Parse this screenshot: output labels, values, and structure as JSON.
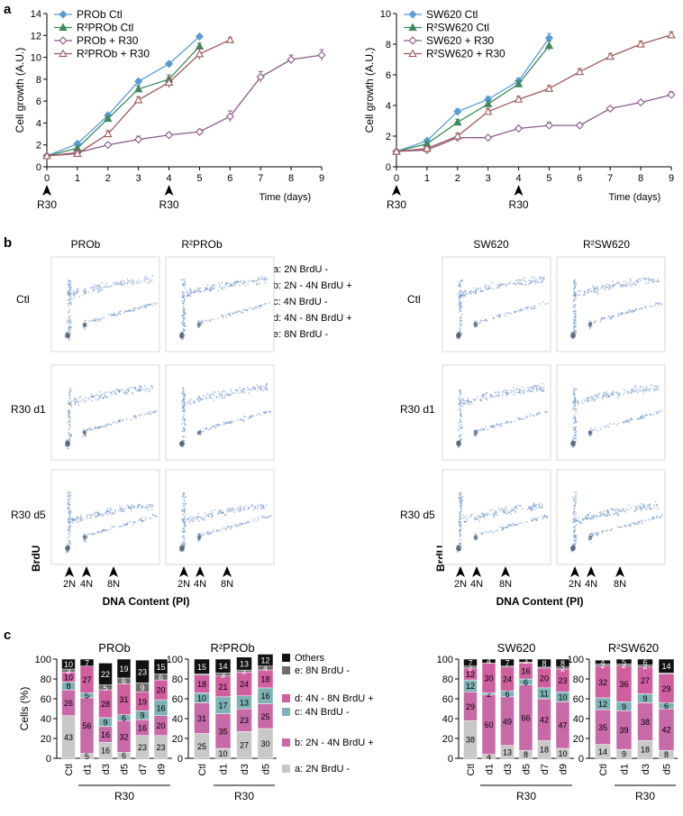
{
  "panel_labels": {
    "a": "a",
    "b": "b",
    "c": "c"
  },
  "colors": {
    "ctl": "#5b9bd5",
    "r2ctl": "#3e8a5e",
    "r30": "#8b5a8b",
    "r2r30": "#a05a5a",
    "a_seg": "#c8c8c8",
    "b_seg": "#c86aa8",
    "c_seg": "#7fb3b3",
    "d_seg": "#d05f9f",
    "e_seg": "#6e6e6e",
    "others": "#111111",
    "scatter": "#6a8fc8"
  },
  "chart_data": [
    {
      "id": "growth_prob",
      "type": "line",
      "xlabel": "Time (days)",
      "ylabel": "Cell growth (A.U.)",
      "xlim": [
        0,
        9
      ],
      "ylim": [
        0,
        14
      ],
      "xticks": [
        "0",
        "1",
        "2",
        "3",
        "4",
        "5",
        "6",
        "7",
        "8",
        "9"
      ],
      "yticks": [
        "0",
        "2",
        "4",
        "6",
        "8",
        "10",
        "12",
        "14"
      ],
      "arrow_labels": [
        "R30",
        "R30"
      ],
      "arrow_days": [
        0,
        4
      ],
      "series": [
        {
          "name": "PROb Ctl",
          "color": "ctl",
          "marker": "diamond",
          "x": [
            0,
            1,
            2,
            3,
            4,
            5
          ],
          "y": [
            1,
            2.1,
            4.7,
            7.8,
            9.4,
            11.9
          ],
          "err": [
            0.1,
            0.15,
            0.2,
            0.2,
            0.2,
            0.1
          ]
        },
        {
          "name": "R²PROb Ctl",
          "color": "r2ctl",
          "marker": "triangle",
          "x": [
            0,
            1,
            2,
            3,
            4,
            5
          ],
          "y": [
            1,
            1.7,
            4.4,
            7.1,
            8.0,
            11.0
          ],
          "err": [
            0.1,
            0.15,
            0.2,
            0.3,
            0.4,
            0.3
          ]
        },
        {
          "name": "PROb + R30",
          "color": "r30",
          "marker": "diamond-open",
          "x": [
            0,
            1,
            2,
            3,
            4,
            5,
            6,
            7,
            8,
            9
          ],
          "y": [
            1,
            1.3,
            2.0,
            2.5,
            2.9,
            3.2,
            4.6,
            8.2,
            9.8,
            10.2
          ],
          "err": [
            0.1,
            0.1,
            0.2,
            0.3,
            0.2,
            0.2,
            0.5,
            0.5,
            0.4,
            0.5
          ]
        },
        {
          "name": "R²PROb + R30",
          "color": "r2r30",
          "marker": "triangle-open",
          "x": [
            0,
            1,
            2,
            3,
            4,
            5,
            6
          ],
          "y": [
            1,
            1.2,
            3.0,
            6.1,
            7.7,
            10.3,
            11.6
          ],
          "err": [
            0.1,
            0.1,
            0.3,
            0.3,
            0.5,
            0.5,
            0.2
          ]
        }
      ]
    },
    {
      "id": "growth_sw620",
      "type": "line",
      "xlabel": "Time (days)",
      "ylabel": "Cell growth (A.U.)",
      "xlim": [
        0,
        9
      ],
      "ylim": [
        0,
        10
      ],
      "xticks": [
        "0",
        "1",
        "2",
        "3",
        "4",
        "5",
        "6",
        "7",
        "8",
        "9"
      ],
      "yticks": [
        "0",
        "2",
        "4",
        "6",
        "8",
        "10"
      ],
      "arrow_labels": [
        "R30",
        "R30"
      ],
      "arrow_days": [
        0,
        4
      ],
      "series": [
        {
          "name": "SW620 Ctl",
          "color": "ctl",
          "marker": "diamond",
          "x": [
            0,
            1,
            2,
            3,
            4,
            5
          ],
          "y": [
            1,
            1.7,
            3.6,
            4.4,
            5.6,
            8.4
          ],
          "err": [
            0.1,
            0.1,
            0.2,
            0.2,
            0.2,
            0.3
          ]
        },
        {
          "name": "R²SW620 Ctl",
          "color": "r2ctl",
          "marker": "triangle",
          "x": [
            0,
            1,
            2,
            3,
            4,
            5
          ],
          "y": [
            1,
            1.5,
            2.9,
            4.1,
            5.4,
            7.9
          ],
          "err": [
            0.1,
            0.1,
            0.2,
            0.2,
            0.2,
            0.3
          ]
        },
        {
          "name": "SW620 + R30",
          "color": "r30",
          "marker": "diamond-open",
          "x": [
            0,
            1,
            2,
            3,
            4,
            5,
            6,
            7,
            8,
            9
          ],
          "y": [
            1,
            1.1,
            1.9,
            1.9,
            2.5,
            2.7,
            2.7,
            3.8,
            4.2,
            4.7
          ],
          "err": [
            0.1,
            0.1,
            0.1,
            0.1,
            0.1,
            0.2,
            0.1,
            0.1,
            0.1,
            0.2
          ]
        },
        {
          "name": "R²SW620 + R30",
          "color": "r2r30",
          "marker": "triangle-open",
          "x": [
            0,
            1,
            2,
            3,
            4,
            5,
            6,
            7,
            8,
            9
          ],
          "y": [
            1,
            1.2,
            2.0,
            3.6,
            4.4,
            5.1,
            6.2,
            7.2,
            8.0,
            8.6
          ],
          "err": [
            0.1,
            0.1,
            0.2,
            0.2,
            0.2,
            0.2,
            0.2,
            0.2,
            0.2,
            0.2
          ]
        }
      ]
    },
    {
      "id": "stack_prob",
      "type": "bar",
      "title": "PROb",
      "ylabel": "Cells (%)",
      "ylim": [
        0,
        100
      ],
      "yticks": [
        "0",
        "20",
        "40",
        "60",
        "80",
        "100"
      ],
      "categories": [
        "Ctl",
        "d1",
        "d3",
        "d5",
        "d7",
        "d9"
      ],
      "group_label": "R30",
      "group_from": 1,
      "series": [
        {
          "name": "a: 2N BrdU -",
          "color": "a_seg",
          "values": [
            43,
            5,
            16,
            6,
            23,
            23
          ]
        },
        {
          "name": "b: 2N - 4N BrdU +",
          "color": "b_seg",
          "values": [
            26,
            56,
            16,
            32,
            16,
            20
          ]
        },
        {
          "name": "c: 4N BrdU -",
          "color": "c_seg",
          "values": [
            8,
            5,
            9,
            6,
            9,
            16
          ]
        },
        {
          "name": "d: 4N - 8N BrdU +",
          "color": "d_seg",
          "values": [
            10,
            27,
            28,
            31,
            19,
            20
          ]
        },
        {
          "name": "e: 8N BrdU -",
          "color": "e_seg",
          "values": [
            3,
            0,
            5,
            6,
            9,
            6
          ]
        },
        {
          "name": "Others",
          "color": "others",
          "values": [
            10,
            7,
            22,
            19,
            23,
            15
          ]
        }
      ]
    },
    {
      "id": "stack_r2prob",
      "type": "bar",
      "title": "R²PROb",
      "ylabel": "",
      "ylim": [
        0,
        100
      ],
      "yticks": [
        "0",
        "20",
        "40",
        "60",
        "80",
        "100"
      ],
      "categories": [
        "Ctl",
        "d1",
        "d3",
        "d5"
      ],
      "group_label": "R30",
      "group_from": 1,
      "series": [
        {
          "name": "a: 2N BrdU -",
          "color": "a_seg",
          "values": [
            25,
            10,
            27,
            30
          ]
        },
        {
          "name": "b: 2N - 4N BrdU +",
          "color": "b_seg",
          "values": [
            31,
            35,
            23,
            25
          ]
        },
        {
          "name": "c: 4N BrdU -",
          "color": "c_seg",
          "values": [
            10,
            17,
            13,
            16
          ]
        },
        {
          "name": "d: 4N - 8N BrdU +",
          "color": "d_seg",
          "values": [
            18,
            21,
            24,
            18
          ]
        },
        {
          "name": "e: 8N BrdU -",
          "color": "e_seg",
          "values": [
            1,
            3,
            2,
            4
          ]
        },
        {
          "name": "Others",
          "color": "others",
          "values": [
            15,
            14,
            13,
            12
          ]
        }
      ]
    },
    {
      "id": "stack_sw620",
      "type": "bar",
      "title": "SW620",
      "ylabel": "",
      "ylim": [
        0,
        100
      ],
      "yticks": [
        "0",
        "20",
        "40",
        "60",
        "80",
        "100"
      ],
      "categories": [
        "Ctl",
        "d1",
        "d3",
        "d5",
        "d7",
        "d9"
      ],
      "group_label": "R30",
      "group_from": 1,
      "series": [
        {
          "name": "a: 2N BrdU -",
          "color": "a_seg",
          "values": [
            38,
            4,
            13,
            8,
            18,
            10
          ]
        },
        {
          "name": "b: 2N - 4N BrdU +",
          "color": "b_seg",
          "values": [
            29,
            60,
            49,
            66,
            42,
            47
          ]
        },
        {
          "name": "c: 4N BrdU -",
          "color": "c_seg",
          "values": [
            12,
            2,
            6,
            6,
            11,
            10
          ]
        },
        {
          "name": "d: 4N - 8N BrdU +",
          "color": "d_seg",
          "values": [
            12,
            30,
            24,
            16,
            20,
            23
          ]
        },
        {
          "name": "e: 8N BrdU -",
          "color": "e_seg",
          "values": [
            2,
            0,
            1,
            1,
            1,
            2
          ]
        },
        {
          "name": "Others",
          "color": "others",
          "values": [
            7,
            4,
            7,
            3,
            8,
            8
          ]
        }
      ]
    },
    {
      "id": "stack_r2sw620",
      "type": "bar",
      "title": "R²SW620",
      "ylabel": "",
      "ylim": [
        0,
        100
      ],
      "yticks": [
        "0",
        "20",
        "40",
        "60",
        "80",
        "100"
      ],
      "categories": [
        "Ctl",
        "d1",
        "d3",
        "d5"
      ],
      "group_label": "R30",
      "group_from": 1,
      "series": [
        {
          "name": "a: 2N BrdU -",
          "color": "a_seg",
          "values": [
            14,
            9,
            18,
            8
          ]
        },
        {
          "name": "b: 2N - 4N BrdU +",
          "color": "b_seg",
          "values": [
            35,
            39,
            38,
            42
          ]
        },
        {
          "name": "c: 4N BrdU -",
          "color": "c_seg",
          "values": [
            12,
            9,
            9,
            6
          ]
        },
        {
          "name": "d: 4N - 8N BrdU +",
          "color": "d_seg",
          "values": [
            32,
            36,
            27,
            29
          ]
        },
        {
          "name": "e: 8N BrdU -",
          "color": "e_seg",
          "values": [
            2,
            2,
            2,
            1
          ]
        },
        {
          "name": "Others",
          "color": "others",
          "values": [
            4,
            5,
            6,
            14
          ]
        }
      ]
    }
  ],
  "flow": {
    "columns_left": [
      "PROb",
      "R²PROb"
    ],
    "columns_right": [
      "SW620",
      "R²SW620"
    ],
    "rows": [
      "Ctl",
      "R30 d1",
      "R30 d5"
    ],
    "gate_letters": [
      "a",
      "b",
      "c",
      "d",
      "e"
    ],
    "gate_legend": [
      "a: 2N BrdU -",
      "b: 2N - 4N BrdU +",
      "c: 4N BrdU -",
      "d: 4N - 8N BrdU +",
      "e: 8N BrdU -"
    ],
    "ploidy_labels": [
      "2N",
      "4N",
      "8N"
    ],
    "xlabel": "DNA Content (PI)",
    "ylabel": "BrdU"
  }
}
